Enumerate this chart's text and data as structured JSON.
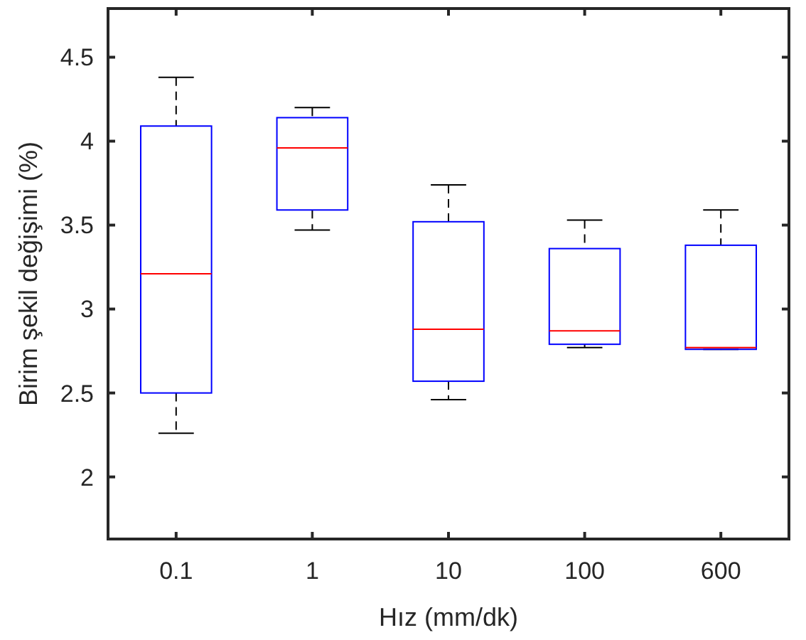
{
  "chart_data": {
    "type": "box",
    "xlabel": "Hız (mm/dk)",
    "ylabel": "Birim şekil değişimi (%)",
    "categories": [
      "0.1",
      "1",
      "10",
      "100",
      "600"
    ],
    "ylim": [
      1.63,
      4.79
    ],
    "yticks": [
      2,
      2.5,
      3,
      3.5,
      4,
      4.5
    ],
    "grid": false,
    "series": [
      {
        "color": "#0000ff",
        "boxes": [
          {
            "low": 2.26,
            "q1": 2.5,
            "median": 3.21,
            "q3": 4.09,
            "high": 4.38
          },
          {
            "low": 3.47,
            "q1": 3.59,
            "median": 3.96,
            "q3": 4.14,
            "high": 4.2
          },
          {
            "low": 2.46,
            "q1": 2.57,
            "median": 2.88,
            "q3": 3.52,
            "high": 3.74
          },
          {
            "low": 2.77,
            "q1": 2.79,
            "median": 2.87,
            "q3": 3.36,
            "high": 3.53
          },
          {
            "low": 2.76,
            "q1": 2.76,
            "median": 2.77,
            "q3": 3.38,
            "high": 3.59
          }
        ]
      }
    ]
  }
}
